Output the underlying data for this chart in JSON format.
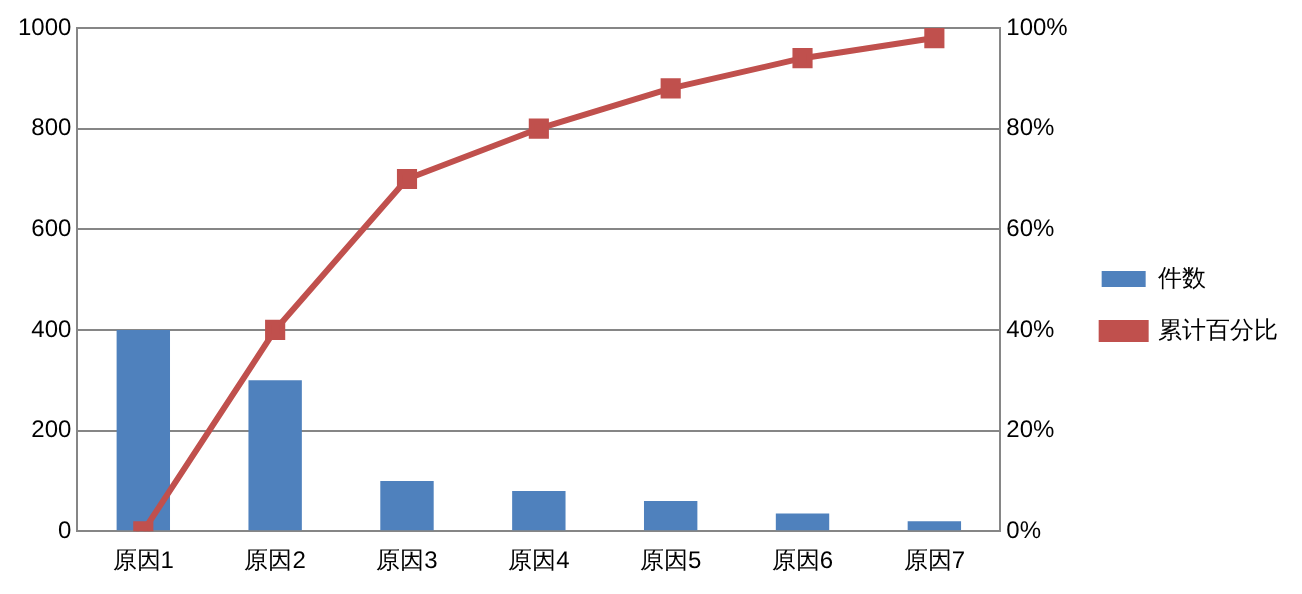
{
  "chart_data": {
    "type": "bar",
    "categories": [
      "原因1",
      "原因2",
      "原因3",
      "原因4",
      "原因5",
      "原因6",
      "原因7"
    ],
    "series": [
      {
        "name": "件数",
        "color": "#4f81bd",
        "values": [
          400,
          300,
          100,
          80,
          60,
          35,
          20
        ]
      },
      {
        "name": "累计百分比",
        "type": "line",
        "axis": "y2",
        "color": "#c0504d",
        "marker": "square",
        "values": [
          0,
          40,
          70,
          80,
          88,
          94,
          98
        ]
      }
    ],
    "ylim": [
      0,
      1000
    ],
    "yticks": [
      0,
      200,
      400,
      600,
      800,
      1000
    ],
    "y2lim": [
      0,
      100
    ],
    "y2ticks": [
      {
        "value": 0,
        "label": "0%"
      },
      {
        "value": 20,
        "label": "20%"
      },
      {
        "value": 40,
        "label": "40%"
      },
      {
        "value": 60,
        "label": "60%"
      },
      {
        "value": 80,
        "label": "80%"
      },
      {
        "value": 100,
        "label": "100%"
      }
    ],
    "grid": "y",
    "legend": "right"
  }
}
